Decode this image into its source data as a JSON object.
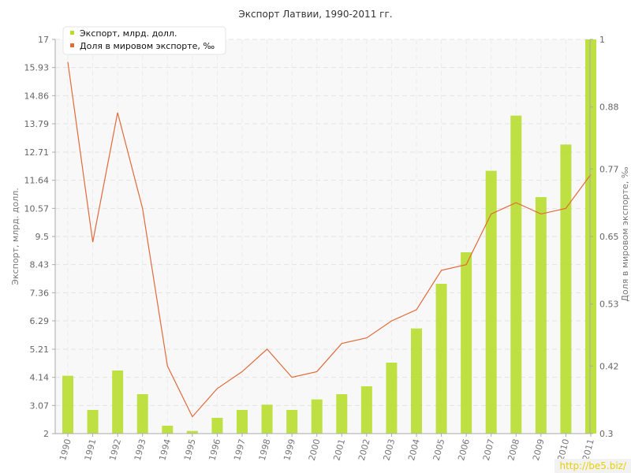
{
  "chart_data": {
    "type": "bar",
    "title": "Экспорт Латвии, 1990-2011 гг.",
    "ylabel_left": "Экспорт, млрд. долл.",
    "ylabel_right": "Доля в мировом экспорте, ‰",
    "categories": [
      "1990",
      "1991",
      "1992",
      "1993",
      "1994",
      "1995",
      "1996",
      "1997",
      "1998",
      "1999",
      "2000",
      "2001",
      "2002",
      "2003",
      "2004",
      "2005",
      "2006",
      "2007",
      "2008",
      "2009",
      "2010",
      "2011"
    ],
    "series": [
      {
        "name": "Экспорт, млрд. долл.",
        "type": "bar",
        "axis": "left",
        "color": "#b8dd2e",
        "values": [
          4.2,
          2.9,
          4.4,
          3.5,
          2.3,
          2.1,
          2.6,
          2.9,
          3.1,
          2.9,
          3.3,
          3.5,
          3.8,
          4.7,
          6.0,
          7.7,
          8.9,
          12.0,
          14.1,
          11.0,
          13.0,
          17.0
        ]
      },
      {
        "name": "Доля в мировом экспорте, ‰",
        "type": "line",
        "axis": "right",
        "color": "#e06a3a",
        "values": [
          0.96,
          0.64,
          0.87,
          0.7,
          0.42,
          0.33,
          0.38,
          0.41,
          0.45,
          0.4,
          0.41,
          0.46,
          0.47,
          0.5,
          0.52,
          0.59,
          0.6,
          0.69,
          0.71,
          0.69,
          0.7,
          0.76
        ]
      }
    ],
    "ylim_left": [
      2,
      17
    ],
    "yticks_left": [
      "2",
      "3.07",
      "4.14",
      "5.21",
      "6.29",
      "7.36",
      "8.43",
      "9.5",
      "10.57",
      "11.64",
      "12.71",
      "13.79",
      "14.86",
      "15.93",
      "17"
    ],
    "ylim_right": [
      0.3,
      1
    ],
    "yticks_right": [
      "0.3",
      "0.42",
      "0.53",
      "0.65",
      "0.77",
      "0.88",
      "1"
    ],
    "grid": true,
    "legend_position": "top-left"
  },
  "watermark": "http://be5.biz/"
}
